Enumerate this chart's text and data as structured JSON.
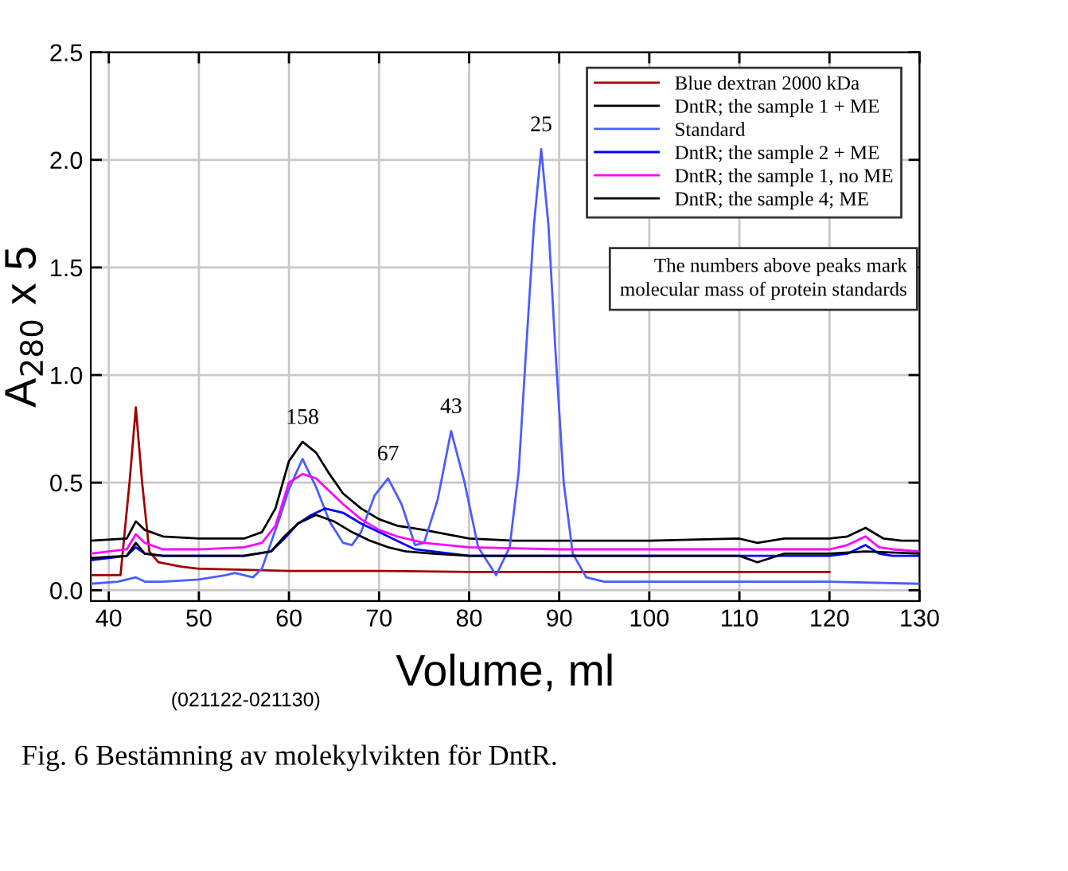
{
  "chart_data": {
    "type": "line",
    "xlabel": "Volume, ml",
    "ylabel": "A$_{280}$ x 5",
    "xlim": [
      38,
      130
    ],
    "ylim": [
      -0.05,
      2.5
    ],
    "xticks": [
      40,
      50,
      60,
      70,
      80,
      90,
      100,
      110,
      120,
      130
    ],
    "yticks": [
      {
        "value": 0,
        "label": "0.0"
      },
      0.5,
      {
        "value": 1,
        "label": "1.0"
      },
      1.5,
      {
        "value": 2,
        "label": "2.0"
      },
      2.5
    ],
    "grid": true,
    "legend": "top right",
    "marker": "none",
    "line_style": "solid",
    "series": [
      {
        "name": "Blue dextran 2000 kDa",
        "color": "#a00000",
        "x": [
          38,
          41.3,
          42.3,
          43,
          43.7,
          44.5,
          45.5,
          48,
          50,
          55,
          60,
          70,
          80,
          90,
          100,
          110,
          120
        ],
        "values": [
          0.07,
          0.07,
          0.5,
          0.85,
          0.5,
          0.18,
          0.13,
          0.11,
          0.1,
          0.095,
          0.09,
          0.09,
          0.085,
          0.085,
          0.085,
          0.085,
          0.085
        ]
      },
      {
        "name": "DntR; the sample 1 + ME",
        "color": "#000000",
        "x": [
          38,
          42,
          43,
          44,
          46,
          50,
          55,
          57,
          58.5,
          60,
          61.5,
          63,
          64.5,
          66,
          68,
          70,
          72,
          75,
          80,
          85,
          90,
          100,
          110,
          112,
          115,
          120,
          122,
          124,
          126,
          128,
          130
        ],
        "values": [
          0.23,
          0.24,
          0.32,
          0.28,
          0.25,
          0.24,
          0.24,
          0.27,
          0.38,
          0.6,
          0.69,
          0.64,
          0.54,
          0.45,
          0.38,
          0.33,
          0.3,
          0.28,
          0.24,
          0.23,
          0.23,
          0.23,
          0.24,
          0.22,
          0.24,
          0.24,
          0.25,
          0.29,
          0.24,
          0.23,
          0.23
        ]
      },
      {
        "name": "Standard",
        "color": "#4a5cff",
        "x": [
          38,
          41,
          43,
          44,
          46,
          50,
          53,
          54,
          56,
          57,
          58,
          59,
          60,
          61.5,
          63,
          64.5,
          66,
          67,
          68,
          69.5,
          71,
          72.5,
          74,
          75,
          76.5,
          78,
          79.5,
          81,
          83,
          84.5,
          85.5,
          86.3,
          87.2,
          88,
          88.8,
          89.6,
          90.5,
          91.5,
          93,
          95,
          100,
          110,
          120,
          130
        ],
        "values": [
          0.03,
          0.04,
          0.06,
          0.04,
          0.04,
          0.05,
          0.07,
          0.08,
          0.06,
          0.1,
          0.22,
          0.34,
          0.47,
          0.61,
          0.48,
          0.32,
          0.22,
          0.21,
          0.27,
          0.44,
          0.52,
          0.4,
          0.21,
          0.22,
          0.42,
          0.74,
          0.5,
          0.2,
          0.07,
          0.2,
          0.55,
          1.1,
          1.7,
          2.05,
          1.7,
          1.1,
          0.5,
          0.17,
          0.06,
          0.04,
          0.04,
          0.04,
          0.04,
          0.03
        ]
      },
      {
        "name": "DntR; the sample 2 + ME",
        "color": "#0000ff",
        "x": [
          38,
          42,
          43,
          44,
          46,
          50,
          55,
          58,
          59.5,
          61,
          62.5,
          64,
          66,
          68,
          70,
          72,
          74,
          76,
          80,
          90,
          100,
          110,
          120,
          122,
          124,
          125.5,
          127,
          130
        ],
        "values": [
          0.14,
          0.16,
          0.2,
          0.17,
          0.16,
          0.16,
          0.16,
          0.18,
          0.24,
          0.31,
          0.35,
          0.38,
          0.36,
          0.31,
          0.27,
          0.23,
          0.19,
          0.18,
          0.16,
          0.16,
          0.16,
          0.16,
          0.16,
          0.17,
          0.21,
          0.17,
          0.16,
          0.16
        ]
      },
      {
        "name": "DntR; the sample 1, no ME",
        "color": "#ff00ff",
        "x": [
          38,
          42,
          43,
          44,
          46,
          50,
          55,
          57,
          58.5,
          60,
          61.5,
          63,
          64.5,
          66,
          68,
          70,
          72,
          75,
          80,
          90,
          100,
          110,
          120,
          122,
          124,
          125.5,
          127,
          130
        ],
        "values": [
          0.17,
          0.19,
          0.26,
          0.22,
          0.19,
          0.19,
          0.2,
          0.22,
          0.3,
          0.5,
          0.54,
          0.52,
          0.46,
          0.4,
          0.33,
          0.28,
          0.25,
          0.22,
          0.2,
          0.19,
          0.19,
          0.19,
          0.19,
          0.21,
          0.25,
          0.2,
          0.19,
          0.18
        ]
      },
      {
        "name": "DntR; the sample 4; ME",
        "color": "#000000",
        "x": [
          38,
          42,
          43,
          44,
          46,
          50,
          55,
          58,
          59.5,
          61,
          63,
          65,
          67,
          69,
          71,
          73,
          76,
          80,
          90,
          100,
          110,
          112,
          115,
          120,
          124,
          130
        ],
        "values": [
          0.15,
          0.16,
          0.22,
          0.17,
          0.16,
          0.16,
          0.16,
          0.18,
          0.25,
          0.31,
          0.35,
          0.32,
          0.27,
          0.23,
          0.2,
          0.18,
          0.17,
          0.16,
          0.16,
          0.16,
          0.16,
          0.13,
          0.17,
          0.17,
          0.18,
          0.17
        ]
      }
    ],
    "annotations": [
      {
        "text": "158",
        "x": 61.5,
        "y": 0.69
      },
      {
        "text": "67",
        "x": 71,
        "y": 0.52
      },
      {
        "text": "43",
        "x": 78,
        "y": 0.74
      },
      {
        "text": "25",
        "x": 88,
        "y": 2.05
      },
      "The numbers above peaks mark\nmolecular mass of protein standards",
      "(021122-021130)",
      "Fig. 6 Bestämning av molekylvikten för DntR."
    ]
  }
}
